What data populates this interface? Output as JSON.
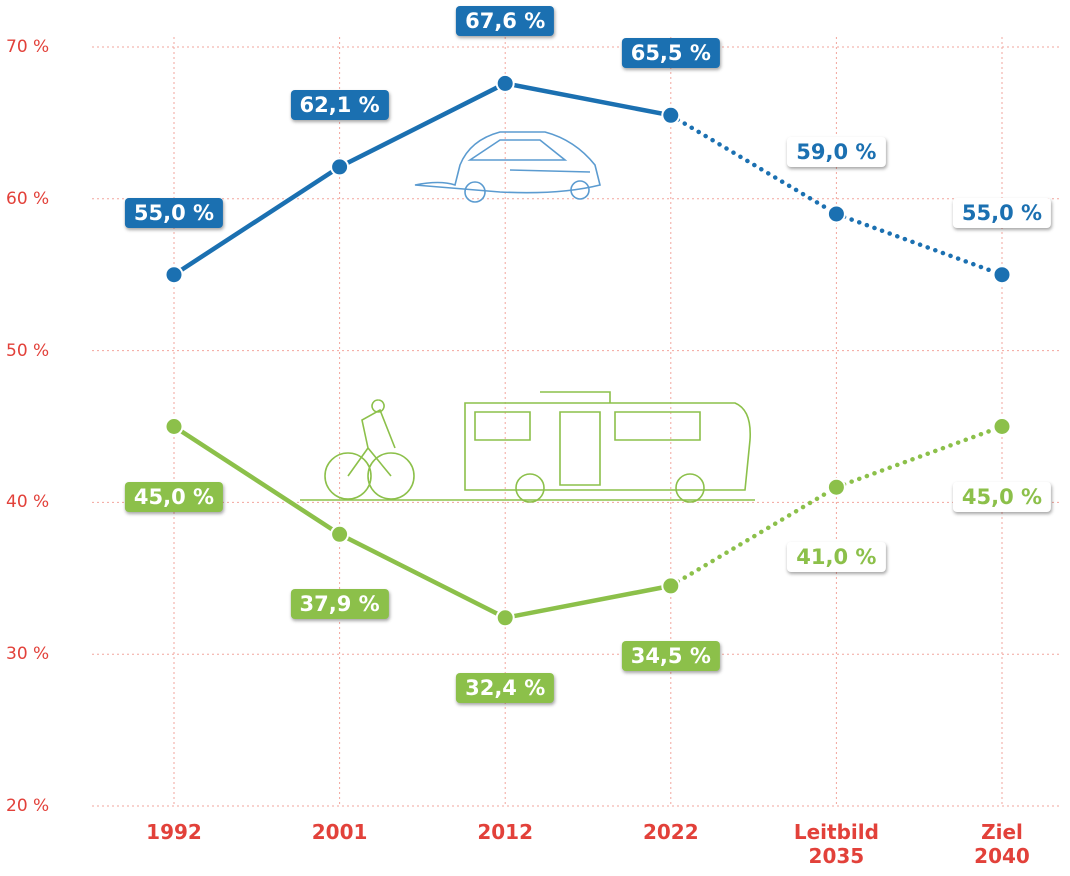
{
  "chart_data": {
    "type": "line",
    "categories": [
      "1992",
      "2001",
      "2012",
      "2022",
      "Leitbild 2035",
      "Ziel 2040"
    ],
    "projected": [
      false,
      false,
      false,
      false,
      true,
      true
    ],
    "series": [
      {
        "color": "#1b70b1",
        "values": [
          55.0,
          62.1,
          67.6,
          65.5,
          59.0,
          55.0
        ],
        "value_labels": [
          "55,0 %",
          "62,1 %",
          "67,6 %",
          "65,5 %",
          "59,0 %",
          "55,0 %"
        ]
      },
      {
        "color": "#8cc04a",
        "values": [
          45.0,
          37.9,
          32.4,
          34.5,
          41.0,
          45.0
        ],
        "value_labels": [
          "45,0 %",
          "37,9 %",
          "32,4 %",
          "34,5 %",
          "41,0 %",
          "45,0 %"
        ]
      }
    ],
    "ylim": [
      20,
      70
    ],
    "yticks": [
      {
        "value": 20,
        "label": "20 %"
      },
      {
        "value": 30,
        "label": "30 %"
      },
      {
        "value": 40,
        "label": "40 %"
      },
      {
        "value": 50,
        "label": "50 %"
      },
      {
        "value": 60,
        "label": "60 %"
      },
      {
        "value": 70,
        "label": "70 %"
      }
    ],
    "grid": true
  }
}
